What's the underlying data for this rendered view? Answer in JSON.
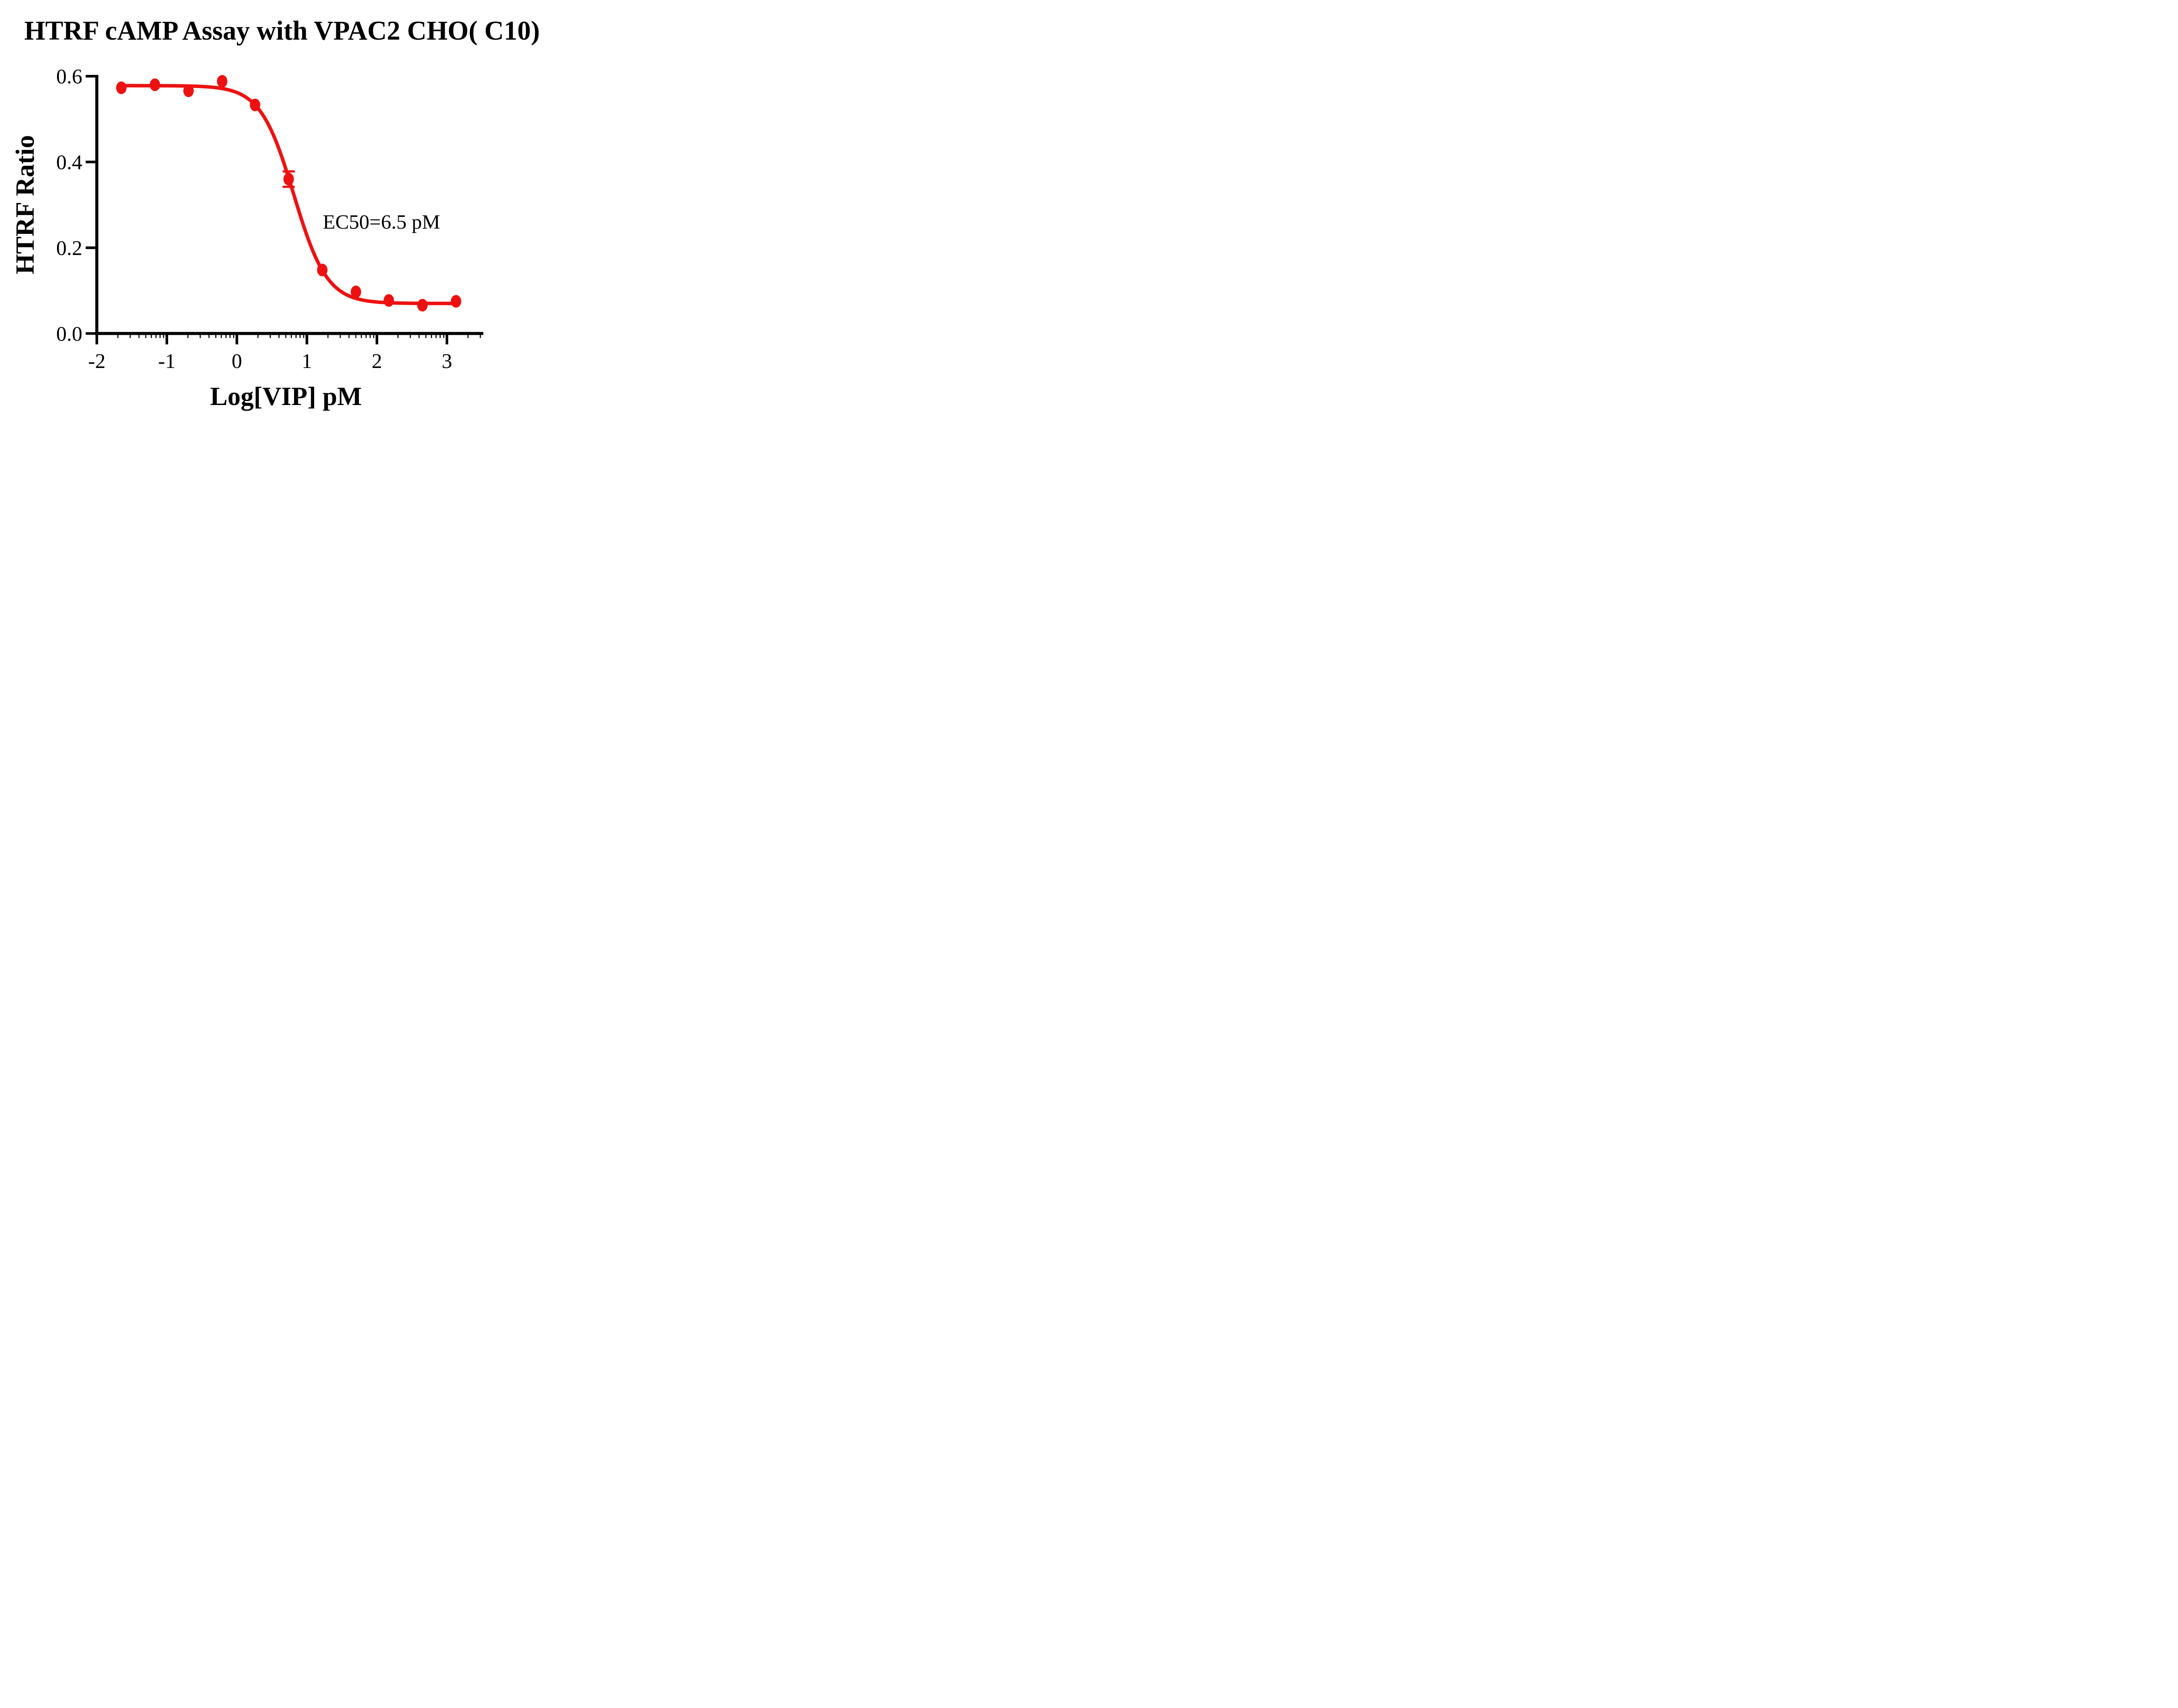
{
  "chart_data": {
    "type": "scatter",
    "title": "HTRF cAMP Assay with VPAC2 CHO( C10)",
    "xlabel": "Log[VIP] pM",
    "ylabel": "HTRF Ratio",
    "annotation": "EC50=6.5 pM",
    "ec50_pM": 6.5,
    "xlim": [
      -2,
      3.52
    ],
    "ylim": [
      0,
      0.6
    ],
    "x_ticks": [
      -2,
      -1,
      0,
      1,
      2,
      3
    ],
    "x_tick_labels": [
      "-2",
      "-1",
      "0",
      "1",
      "2",
      "3"
    ],
    "x_minor_tick_style": "log-decade",
    "y_ticks": [
      0.0,
      0.2,
      0.4,
      0.6
    ],
    "y_tick_labels": [
      "0.0",
      "0.2",
      "0.4",
      "0.6"
    ],
    "grid": false,
    "legend": false,
    "axis_color": "#000000",
    "series": [
      {
        "color": "#ee1111",
        "marker": "circle",
        "points": [
          {
            "x": -1.65,
            "y": 0.573
          },
          {
            "x": -1.17,
            "y": 0.58
          },
          {
            "x": -0.69,
            "y": 0.566
          },
          {
            "x": -0.21,
            "y": 0.588
          },
          {
            "x": 0.26,
            "y": 0.533
          },
          {
            "x": 0.74,
            "y": 0.36,
            "sem": 0.018
          },
          {
            "x": 1.22,
            "y": 0.148
          },
          {
            "x": 1.7,
            "y": 0.097
          },
          {
            "x": 2.17,
            "y": 0.077
          },
          {
            "x": 2.65,
            "y": 0.066
          },
          {
            "x": 3.13,
            "y": 0.075
          }
        ],
        "fit": {
          "model": "4PL",
          "top": 0.578,
          "bottom": 0.07,
          "logEC50": 0.813,
          "hill_slope": -1.83,
          "x_start": -1.65,
          "x_end": 3.13
        }
      }
    ]
  }
}
